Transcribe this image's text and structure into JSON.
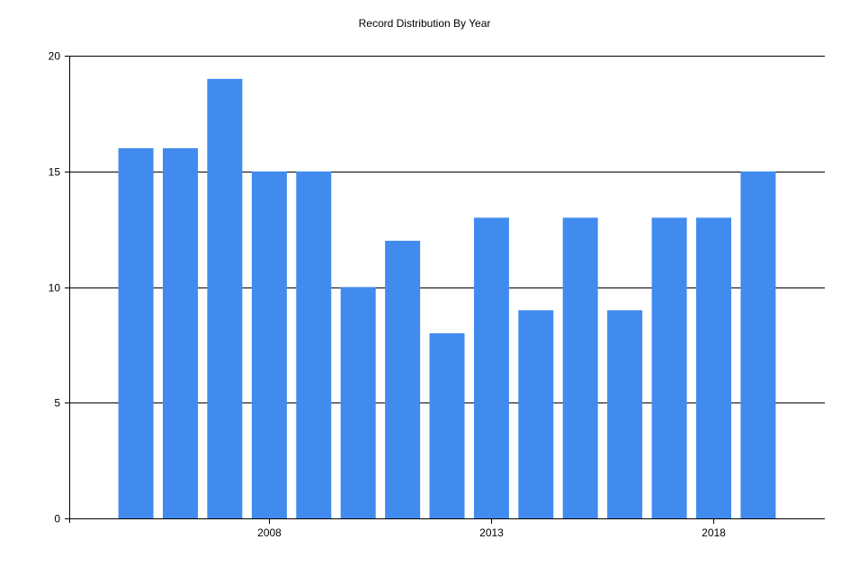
{
  "chart_data": {
    "type": "bar",
    "title": "Record Distribution By Year",
    "xlabel": "",
    "ylabel": "",
    "x": [
      2005,
      2006,
      2007,
      2008,
      2009,
      2010,
      2011,
      2012,
      2013,
      2014,
      2015,
      2016,
      2017,
      2018,
      2019
    ],
    "values": [
      16,
      16,
      19,
      15,
      15,
      10,
      12,
      8,
      13,
      9,
      13,
      9,
      13,
      13,
      15
    ],
    "ylim": [
      0,
      20
    ],
    "yticks": [
      0,
      5,
      10,
      15,
      20
    ],
    "xticks": [
      2008,
      2013,
      2018
    ],
    "grid": "horizontal",
    "legend": "none",
    "bar_color": "#418BEF",
    "axis_color": "#000000"
  }
}
